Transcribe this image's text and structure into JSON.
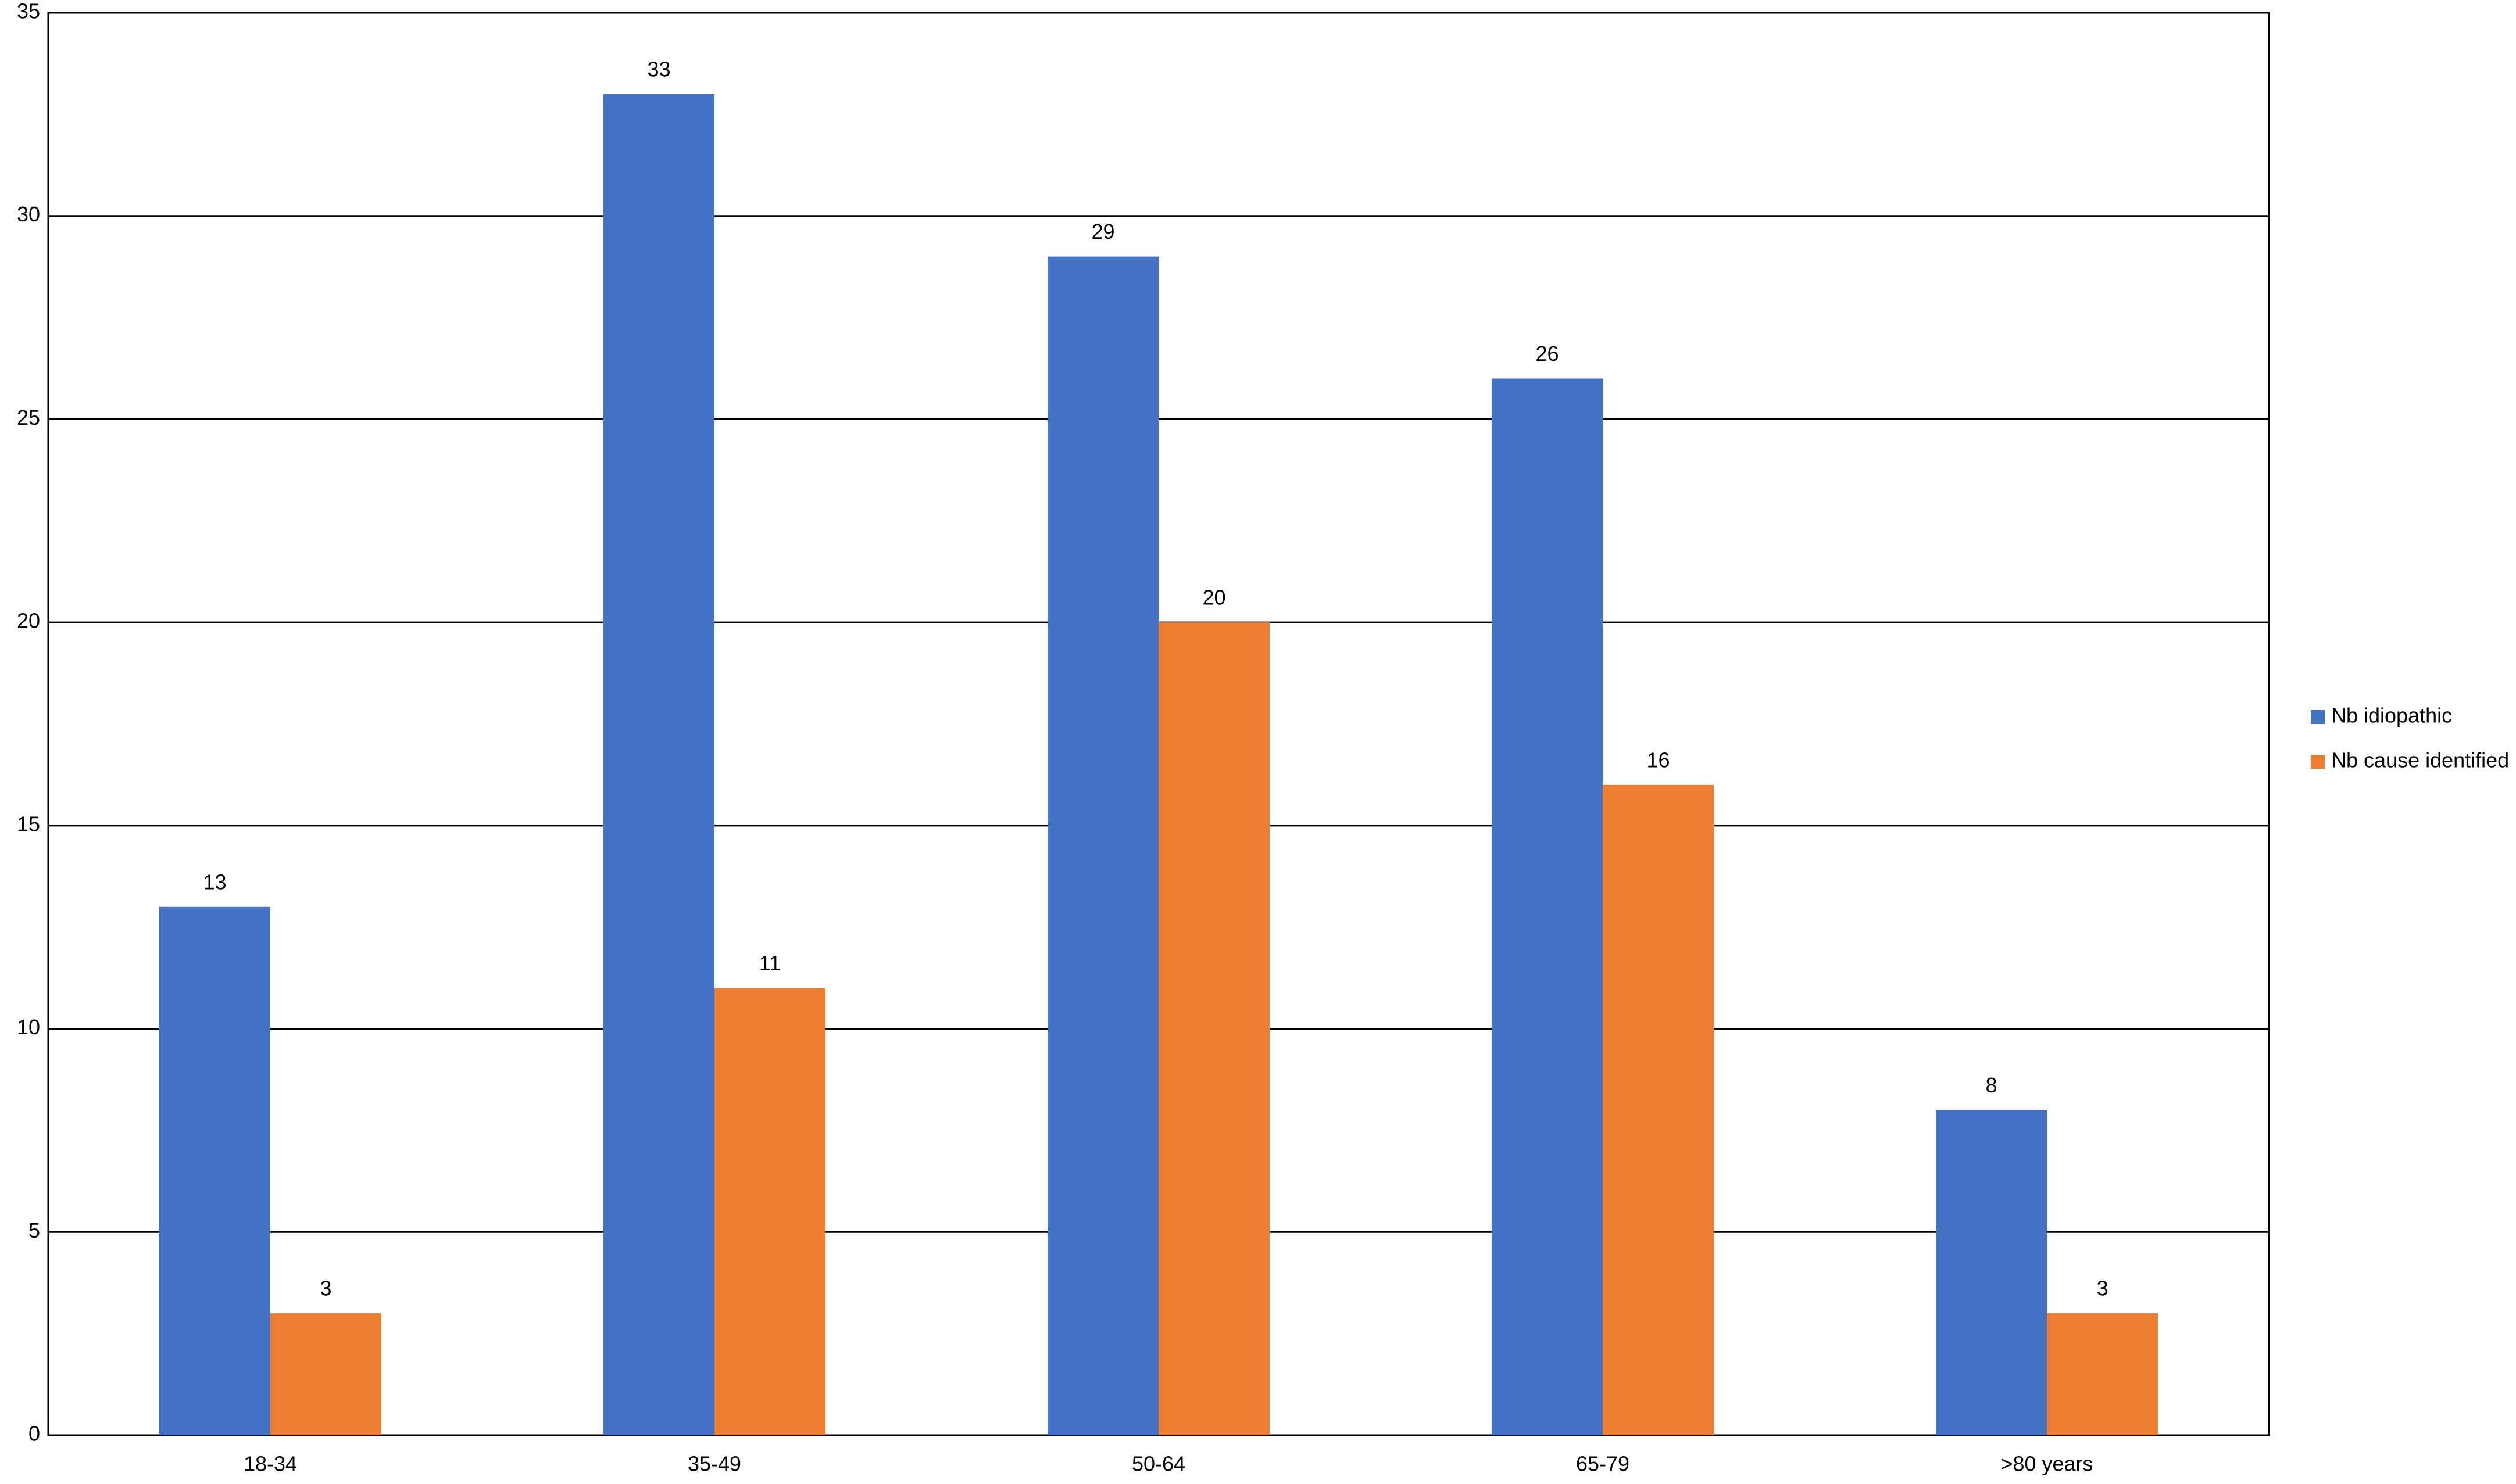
{
  "chart_data": {
    "type": "bar",
    "categories": [
      "18-34",
      "35-49",
      "50-64",
      "65-79",
      ">80 years"
    ],
    "series": [
      {
        "name": "Nb idiopathic",
        "color": "#4472c4",
        "values": [
          13,
          33,
          29,
          26,
          8
        ]
      },
      {
        "name": "Nb cause identified",
        "color": "#ed7d31",
        "values": [
          3,
          11,
          20,
          16,
          3
        ]
      }
    ],
    "ylim": [
      0,
      35
    ],
    "yticks": [
      0,
      5,
      10,
      15,
      20,
      25,
      30,
      35
    ],
    "grid": true,
    "legend": "right"
  }
}
